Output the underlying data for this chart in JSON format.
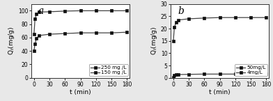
{
  "a": {
    "label": "a",
    "t": [
      0,
      2,
      5,
      10,
      30,
      60,
      90,
      120,
      150,
      180
    ],
    "series": [
      {
        "label": "250 mg /L",
        "values": [
          65,
          88,
          95,
          98,
          98.5,
          99.5,
          100,
          100,
          100,
          100
        ],
        "marker": "s",
        "color": "#111111"
      },
      {
        "label": "150 mg /L",
        "values": [
          40,
          51,
          59,
          63,
          65,
          66,
          67,
          67,
          67,
          68
        ],
        "marker": "s",
        "color": "#111111"
      }
    ],
    "ylabel": "Q$_t$(mg/g)",
    "xlabel": "t (min)",
    "ylim": [
      0,
      110
    ],
    "yticks": [
      0,
      20,
      40,
      60,
      80,
      100
    ],
    "xticks": [
      0,
      30,
      60,
      90,
      120,
      150,
      180
    ]
  },
  "b": {
    "label": "b",
    "t": [
      0,
      2,
      5,
      10,
      30,
      60,
      90,
      120,
      150,
      180
    ],
    "series": [
      {
        "label": "50mg/L",
        "values": [
          15,
          20.5,
          22.5,
          23.5,
          24.0,
          24.3,
          24.5,
          24.5,
          24.5,
          24.5
        ],
        "marker": "s",
        "color": "#111111"
      },
      {
        "label": "4mg/L",
        "values": [
          0.3,
          1.0,
          1.2,
          1.3,
          1.4,
          1.5,
          1.5,
          1.5,
          1.5,
          1.5
        ],
        "marker": "s",
        "color": "#111111"
      }
    ],
    "ylabel": "Q$_t$(mg/g)",
    "xlabel": "t (min)",
    "ylim": [
      0,
      30
    ],
    "yticks": [
      0,
      5,
      10,
      15,
      20,
      25,
      30
    ],
    "xticks": [
      0,
      30,
      60,
      90,
      120,
      150,
      180
    ]
  },
  "line_color": "#444444",
  "markersize": 3.0,
  "linewidth": 0.9,
  "fontsize_label": 6.5,
  "fontsize_tick": 5.5,
  "fontsize_legend": 5.2,
  "fontsize_panel": 10,
  "fig_facecolor": "#e8e8e8",
  "ax_facecolor": "#ffffff"
}
